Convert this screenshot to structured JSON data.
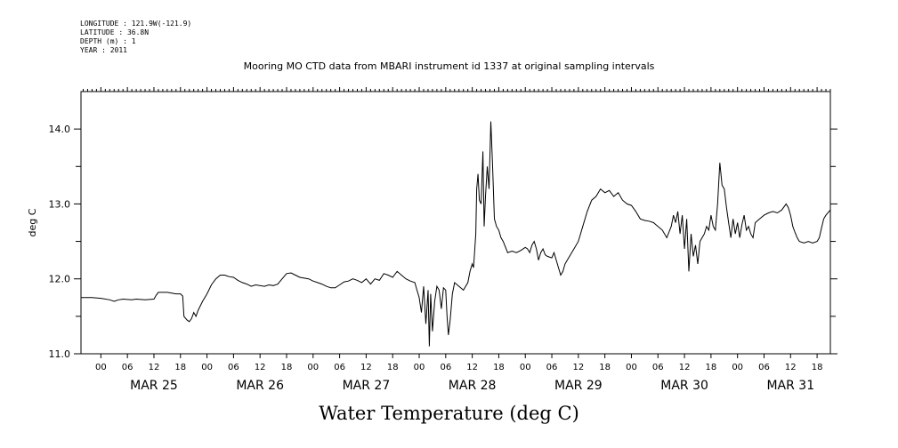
{
  "metadata": {
    "longitude": "LONGITUDE : 121.9W(-121.9)",
    "latitude": "LATITUDE : 36.8N",
    "depth": "DEPTH (m) : 1",
    "year": "YEAR : 2011"
  },
  "chart_data": {
    "type": "line",
    "title": "Mooring MO CTD data from MBARI instrument id 1337 at original sampling intervals",
    "xlabel": "Water Temperature (deg C)",
    "ylabel": "deg C",
    "ylim": [
      11.0,
      14.5
    ],
    "yticks": [
      11.0,
      12.0,
      13.0,
      14.0
    ],
    "ytick_labels": [
      "11.0",
      "12.0",
      "13.0",
      "14.0"
    ],
    "xlim_hours": [
      -4.5,
      165
    ],
    "xticks_hours": [
      0,
      6,
      12,
      18,
      24,
      30,
      36,
      42,
      48,
      54,
      60,
      66,
      72,
      78,
      84,
      90,
      96,
      102,
      108,
      114,
      120,
      126,
      132,
      138,
      144,
      150,
      156,
      162
    ],
    "xtick_labels": [
      "00",
      "06",
      "12",
      "18",
      "00",
      "06",
      "12",
      "18",
      "00",
      "06",
      "12",
      "18",
      "00",
      "06",
      "12",
      "18",
      "00",
      "06",
      "12",
      "18",
      "00",
      "06",
      "12",
      "18",
      "00",
      "06",
      "12",
      "18"
    ],
    "day_labels": [
      {
        "label": "MAR 25",
        "hour": 12
      },
      {
        "label": "MAR 26",
        "hour": 36
      },
      {
        "label": "MAR 27",
        "hour": 60
      },
      {
        "label": "MAR 28",
        "hour": 84
      },
      {
        "label": "MAR 29",
        "hour": 108
      },
      {
        "label": "MAR 30",
        "hour": 132
      },
      {
        "label": "MAR 31",
        "hour": 156
      }
    ],
    "series": [
      {
        "name": "",
        "color": "#000000",
        "points": [
          [
            -4.5,
            11.75
          ],
          [
            -2,
            11.75
          ],
          [
            0,
            11.74
          ],
          [
            2,
            11.72
          ],
          [
            3,
            11.7
          ],
          [
            4,
            11.72
          ],
          [
            5,
            11.73
          ],
          [
            7,
            11.72
          ],
          [
            8,
            11.73
          ],
          [
            10,
            11.72
          ],
          [
            12,
            11.73
          ],
          [
            12.5,
            11.78
          ],
          [
            13,
            11.82
          ],
          [
            15,
            11.82
          ],
          [
            17,
            11.8
          ],
          [
            18,
            11.8
          ],
          [
            18.5,
            11.77
          ],
          [
            18.8,
            11.5
          ],
          [
            19.5,
            11.45
          ],
          [
            20,
            11.43
          ],
          [
            20.5,
            11.47
          ],
          [
            21,
            11.55
          ],
          [
            21.5,
            11.5
          ],
          [
            22,
            11.58
          ],
          [
            23,
            11.7
          ],
          [
            24,
            11.8
          ],
          [
            25,
            11.92
          ],
          [
            26,
            12.0
          ],
          [
            27,
            12.05
          ],
          [
            28,
            12.05
          ],
          [
            29,
            12.03
          ],
          [
            30,
            12.02
          ],
          [
            31,
            11.98
          ],
          [
            32,
            11.95
          ],
          [
            33,
            11.93
          ],
          [
            34,
            11.9
          ],
          [
            35,
            11.92
          ],
          [
            37,
            11.9
          ],
          [
            38,
            11.92
          ],
          [
            39,
            11.91
          ],
          [
            40,
            11.93
          ],
          [
            41,
            12.0
          ],
          [
            42,
            12.07
          ],
          [
            43,
            12.08
          ],
          [
            44,
            12.05
          ],
          [
            45,
            12.02
          ],
          [
            47,
            12.0
          ],
          [
            48,
            11.97
          ],
          [
            49,
            11.95
          ],
          [
            50,
            11.93
          ],
          [
            51,
            11.9
          ],
          [
            52,
            11.88
          ],
          [
            53,
            11.88
          ],
          [
            54,
            11.92
          ],
          [
            55,
            11.96
          ],
          [
            56,
            11.97
          ],
          [
            57,
            12.0
          ],
          [
            58,
            11.98
          ],
          [
            59,
            11.95
          ],
          [
            60,
            12.0
          ],
          [
            61,
            11.93
          ],
          [
            62,
            12.0
          ],
          [
            63,
            11.98
          ],
          [
            64,
            12.07
          ],
          [
            65,
            12.05
          ],
          [
            66,
            12.02
          ],
          [
            67,
            12.1
          ],
          [
            68,
            12.05
          ],
          [
            69,
            12.0
          ],
          [
            70,
            11.97
          ],
          [
            71,
            11.95
          ],
          [
            71.5,
            11.85
          ],
          [
            72,
            11.75
          ],
          [
            72.5,
            11.55
          ],
          [
            73,
            11.9
          ],
          [
            73.5,
            11.4
          ],
          [
            74,
            11.85
          ],
          [
            74.3,
            11.1
          ],
          [
            74.6,
            11.8
          ],
          [
            75,
            11.3
          ],
          [
            75.5,
            11.7
          ],
          [
            76,
            11.9
          ],
          [
            76.5,
            11.85
          ],
          [
            77,
            11.6
          ],
          [
            77.5,
            11.88
          ],
          [
            78,
            11.85
          ],
          [
            78.3,
            11.5
          ],
          [
            78.6,
            11.25
          ],
          [
            79,
            11.45
          ],
          [
            79.5,
            11.8
          ],
          [
            80,
            11.95
          ],
          [
            81,
            11.9
          ],
          [
            82,
            11.85
          ],
          [
            83,
            11.95
          ],
          [
            83.5,
            12.1
          ],
          [
            84,
            12.2
          ],
          [
            84.3,
            12.15
          ],
          [
            84.8,
            12.6
          ],
          [
            85,
            13.2
          ],
          [
            85.3,
            13.4
          ],
          [
            85.6,
            13.05
          ],
          [
            86,
            13.0
          ],
          [
            86.4,
            13.7
          ],
          [
            86.7,
            12.7
          ],
          [
            87,
            13.1
          ],
          [
            87.4,
            13.5
          ],
          [
            87.8,
            13.2
          ],
          [
            88.2,
            14.1
          ],
          [
            88.6,
            13.5
          ],
          [
            89,
            12.8
          ],
          [
            89.5,
            12.7
          ],
          [
            90,
            12.65
          ],
          [
            90.5,
            12.55
          ],
          [
            91,
            12.5
          ],
          [
            92,
            12.35
          ],
          [
            93,
            12.37
          ],
          [
            94,
            12.35
          ],
          [
            95,
            12.38
          ],
          [
            96,
            12.42
          ],
          [
            96.5,
            12.4
          ],
          [
            97,
            12.35
          ],
          [
            97.5,
            12.45
          ],
          [
            98,
            12.5
          ],
          [
            98.5,
            12.4
          ],
          [
            99,
            12.25
          ],
          [
            99.5,
            12.35
          ],
          [
            100,
            12.4
          ],
          [
            100.5,
            12.32
          ],
          [
            101,
            12.3
          ],
          [
            102,
            12.28
          ],
          [
            102.5,
            12.35
          ],
          [
            103,
            12.25
          ],
          [
            103.5,
            12.15
          ],
          [
            104,
            12.05
          ],
          [
            104.5,
            12.1
          ],
          [
            105,
            12.2
          ],
          [
            106,
            12.3
          ],
          [
            107,
            12.4
          ],
          [
            108,
            12.5
          ],
          [
            109,
            12.7
          ],
          [
            110,
            12.9
          ],
          [
            111,
            13.05
          ],
          [
            112,
            13.1
          ],
          [
            113,
            13.2
          ],
          [
            114,
            13.15
          ],
          [
            115,
            13.18
          ],
          [
            116,
            13.1
          ],
          [
            117,
            13.15
          ],
          [
            118,
            13.05
          ],
          [
            119,
            13.0
          ],
          [
            120,
            12.98
          ],
          [
            121,
            12.9
          ],
          [
            122,
            12.8
          ],
          [
            123,
            12.78
          ],
          [
            124,
            12.77
          ],
          [
            125,
            12.75
          ],
          [
            126,
            12.7
          ],
          [
            127,
            12.65
          ],
          [
            128,
            12.55
          ],
          [
            129,
            12.7
          ],
          [
            129.5,
            12.85
          ],
          [
            130,
            12.75
          ],
          [
            130.5,
            12.9
          ],
          [
            131,
            12.6
          ],
          [
            131.5,
            12.85
          ],
          [
            132,
            12.4
          ],
          [
            132.5,
            12.8
          ],
          [
            133,
            12.1
          ],
          [
            133.5,
            12.6
          ],
          [
            134,
            12.3
          ],
          [
            134.5,
            12.45
          ],
          [
            135,
            12.2
          ],
          [
            135.5,
            12.5
          ],
          [
            136,
            12.55
          ],
          [
            136.5,
            12.6
          ],
          [
            137,
            12.7
          ],
          [
            137.5,
            12.65
          ],
          [
            138,
            12.85
          ],
          [
            138.5,
            12.7
          ],
          [
            139,
            12.65
          ],
          [
            139.5,
            13.0
          ],
          [
            140,
            13.55
          ],
          [
            140.5,
            13.25
          ],
          [
            141,
            13.2
          ],
          [
            141.5,
            12.95
          ],
          [
            142,
            12.75
          ],
          [
            142.5,
            12.55
          ],
          [
            143,
            12.8
          ],
          [
            143.5,
            12.6
          ],
          [
            144,
            12.75
          ],
          [
            144.5,
            12.55
          ],
          [
            145,
            12.72
          ],
          [
            145.5,
            12.85
          ],
          [
            146,
            12.65
          ],
          [
            146.5,
            12.7
          ],
          [
            147,
            12.6
          ],
          [
            147.5,
            12.55
          ],
          [
            148,
            12.75
          ],
          [
            149,
            12.8
          ],
          [
            150,
            12.85
          ],
          [
            151,
            12.88
          ],
          [
            152,
            12.9
          ],
          [
            153,
            12.88
          ],
          [
            154,
            12.92
          ],
          [
            155,
            13.0
          ],
          [
            155.5,
            12.95
          ],
          [
            156,
            12.85
          ],
          [
            156.5,
            12.7
          ],
          [
            157,
            12.62
          ],
          [
            157.5,
            12.55
          ],
          [
            158,
            12.5
          ],
          [
            159,
            12.48
          ],
          [
            160,
            12.5
          ],
          [
            161,
            12.48
          ],
          [
            162,
            12.5
          ],
          [
            162.5,
            12.55
          ],
          [
            163,
            12.68
          ],
          [
            163.5,
            12.8
          ],
          [
            164,
            12.85
          ],
          [
            165,
            12.92
          ]
        ]
      }
    ]
  }
}
